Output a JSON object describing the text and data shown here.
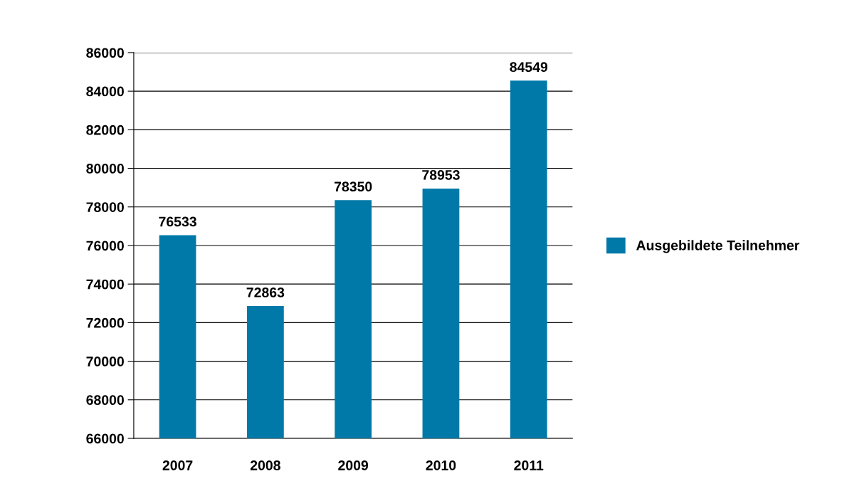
{
  "chart_data": {
    "type": "bar",
    "categories": [
      "2007",
      "2008",
      "2009",
      "2010",
      "2011"
    ],
    "series": [
      {
        "name": "Ausgebildete Teilnehmer",
        "color": "#0079a8",
        "values": [
          76533,
          72863,
          78350,
          78953,
          84549
        ]
      }
    ],
    "ylim": [
      66000,
      86000
    ],
    "yticks": [
      66000,
      68000,
      70000,
      72000,
      74000,
      76000,
      78000,
      80000,
      82000,
      84000,
      86000
    ],
    "grid": "y",
    "legend": "right",
    "data_labels": true
  }
}
